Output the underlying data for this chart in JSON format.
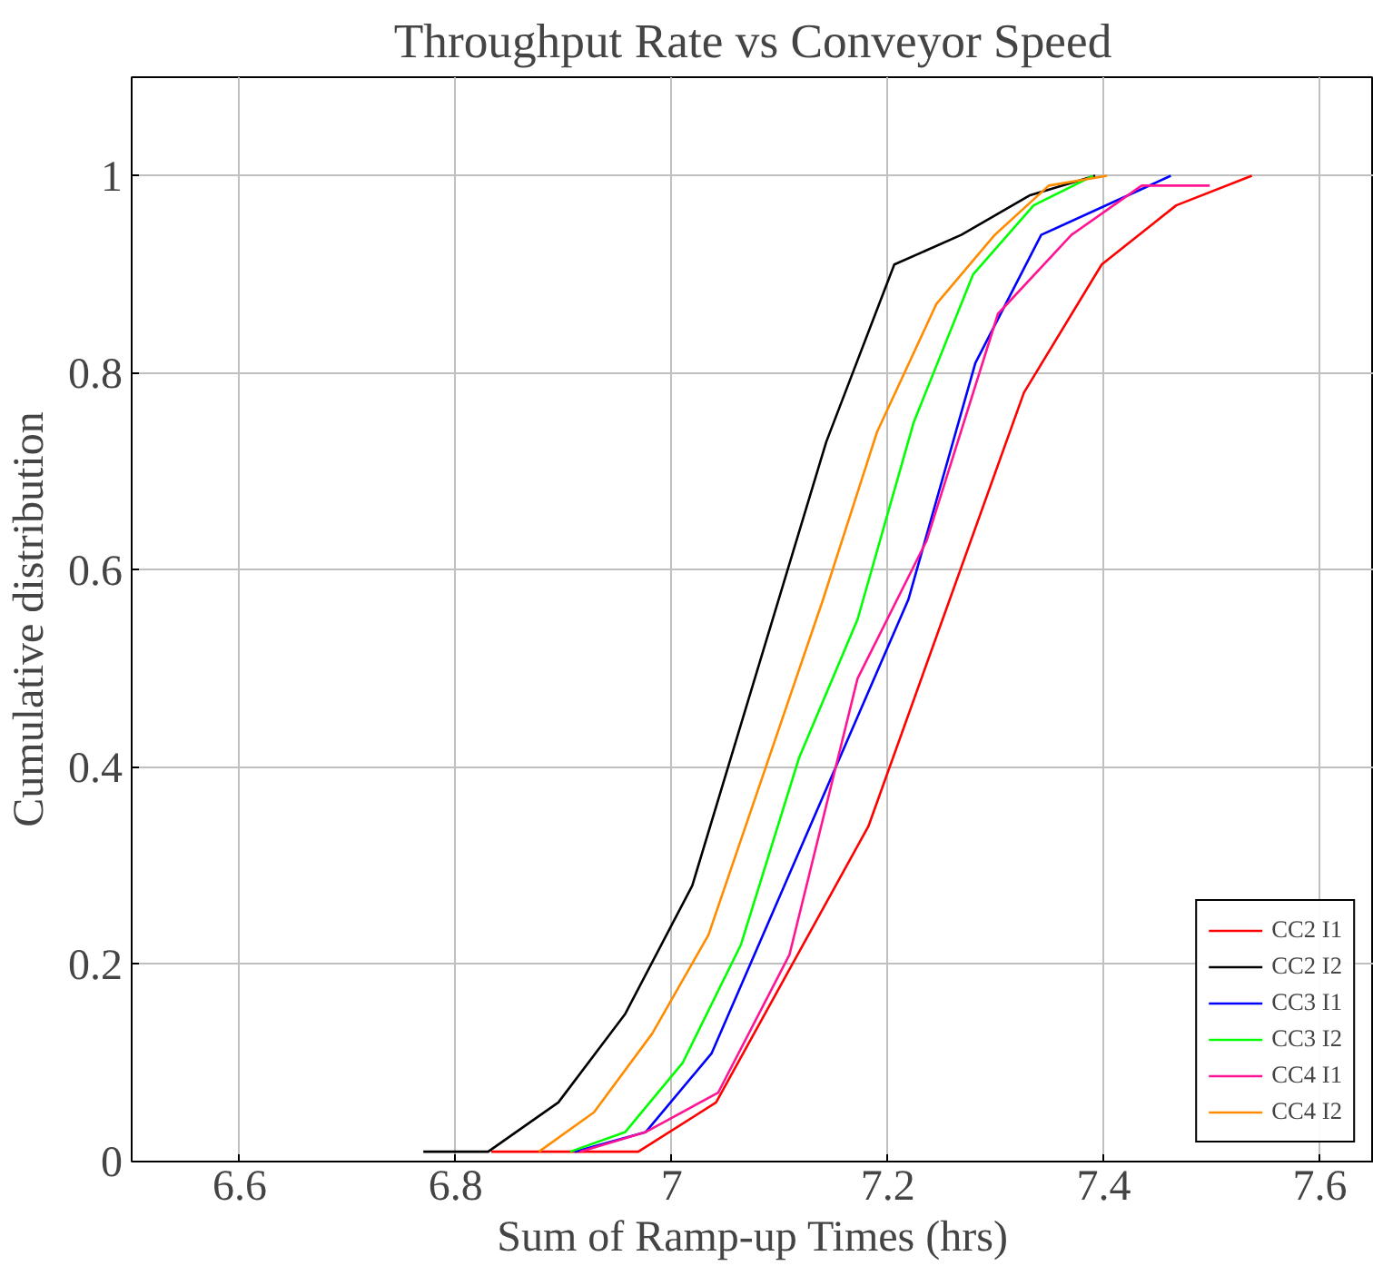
{
  "chart_data": {
    "type": "line",
    "title": "Throughput Rate vs Conveyor Speed",
    "xlabel": "Sum of Ramp-up Times (hrs)",
    "ylabel": "Cumulative distribution",
    "xlim": [
      6.5,
      7.65
    ],
    "ylim": [
      0,
      1.1
    ],
    "xticks": [
      6.6,
      6.8,
      7,
      7.2,
      7.4,
      7.6
    ],
    "yticks": [
      0,
      0.2,
      0.4,
      0.6,
      0.8,
      1
    ],
    "grid": true,
    "legend": "bottom right",
    "marker": "none",
    "line_style": "solid",
    "series": [
      {
        "name": "CC2 I1",
        "color": "#ff0000",
        "x": [
          6.833,
          6.969,
          7.041,
          7.182,
          7.326,
          7.398,
          7.467,
          7.537
        ],
        "values": [
          0.01,
          0.01,
          0.06,
          0.34,
          0.78,
          0.91,
          0.97,
          1.0
        ]
      },
      {
        "name": "CC2 I2",
        "color": "#000000",
        "x": [
          6.77,
          6.83,
          6.895,
          6.957,
          7.019,
          7.143,
          7.206,
          7.268,
          7.331,
          7.392
        ],
        "values": [
          0.01,
          0.01,
          0.06,
          0.15,
          0.28,
          0.73,
          0.91,
          0.94,
          0.98,
          1.0
        ]
      },
      {
        "name": "CC3 I1",
        "color": "#0000ff",
        "x": [
          6.91,
          6.976,
          7.037,
          7.219,
          7.281,
          7.342,
          7.462
        ],
        "values": [
          0.01,
          0.03,
          0.11,
          0.57,
          0.81,
          0.94,
          1.0
        ]
      },
      {
        "name": "CC3 I2",
        "color": "#00ff00",
        "x": [
          6.906,
          6.957,
          7.01,
          7.064,
          7.118,
          7.172,
          7.224,
          7.279,
          7.335,
          7.39
        ],
        "values": [
          0.01,
          0.03,
          0.1,
          0.22,
          0.41,
          0.55,
          0.75,
          0.9,
          0.97,
          1.0
        ]
      },
      {
        "name": "CC4 I1",
        "color": "#ff1493",
        "x": [
          6.915,
          6.976,
          7.043,
          7.109,
          7.172,
          7.236,
          7.302,
          7.37,
          7.435,
          7.498
        ],
        "values": [
          0.01,
          0.03,
          0.07,
          0.21,
          0.49,
          0.63,
          0.86,
          0.94,
          0.99,
          0.99
        ]
      },
      {
        "name": "CC4 I2",
        "color": "#ff8c00",
        "x": [
          6.877,
          6.928,
          6.982,
          7.034,
          7.14,
          7.19,
          7.245,
          7.299,
          7.349,
          7.403
        ],
        "values": [
          0.01,
          0.05,
          0.13,
          0.23,
          0.57,
          0.74,
          0.87,
          0.94,
          0.99,
          1.0
        ]
      }
    ]
  }
}
